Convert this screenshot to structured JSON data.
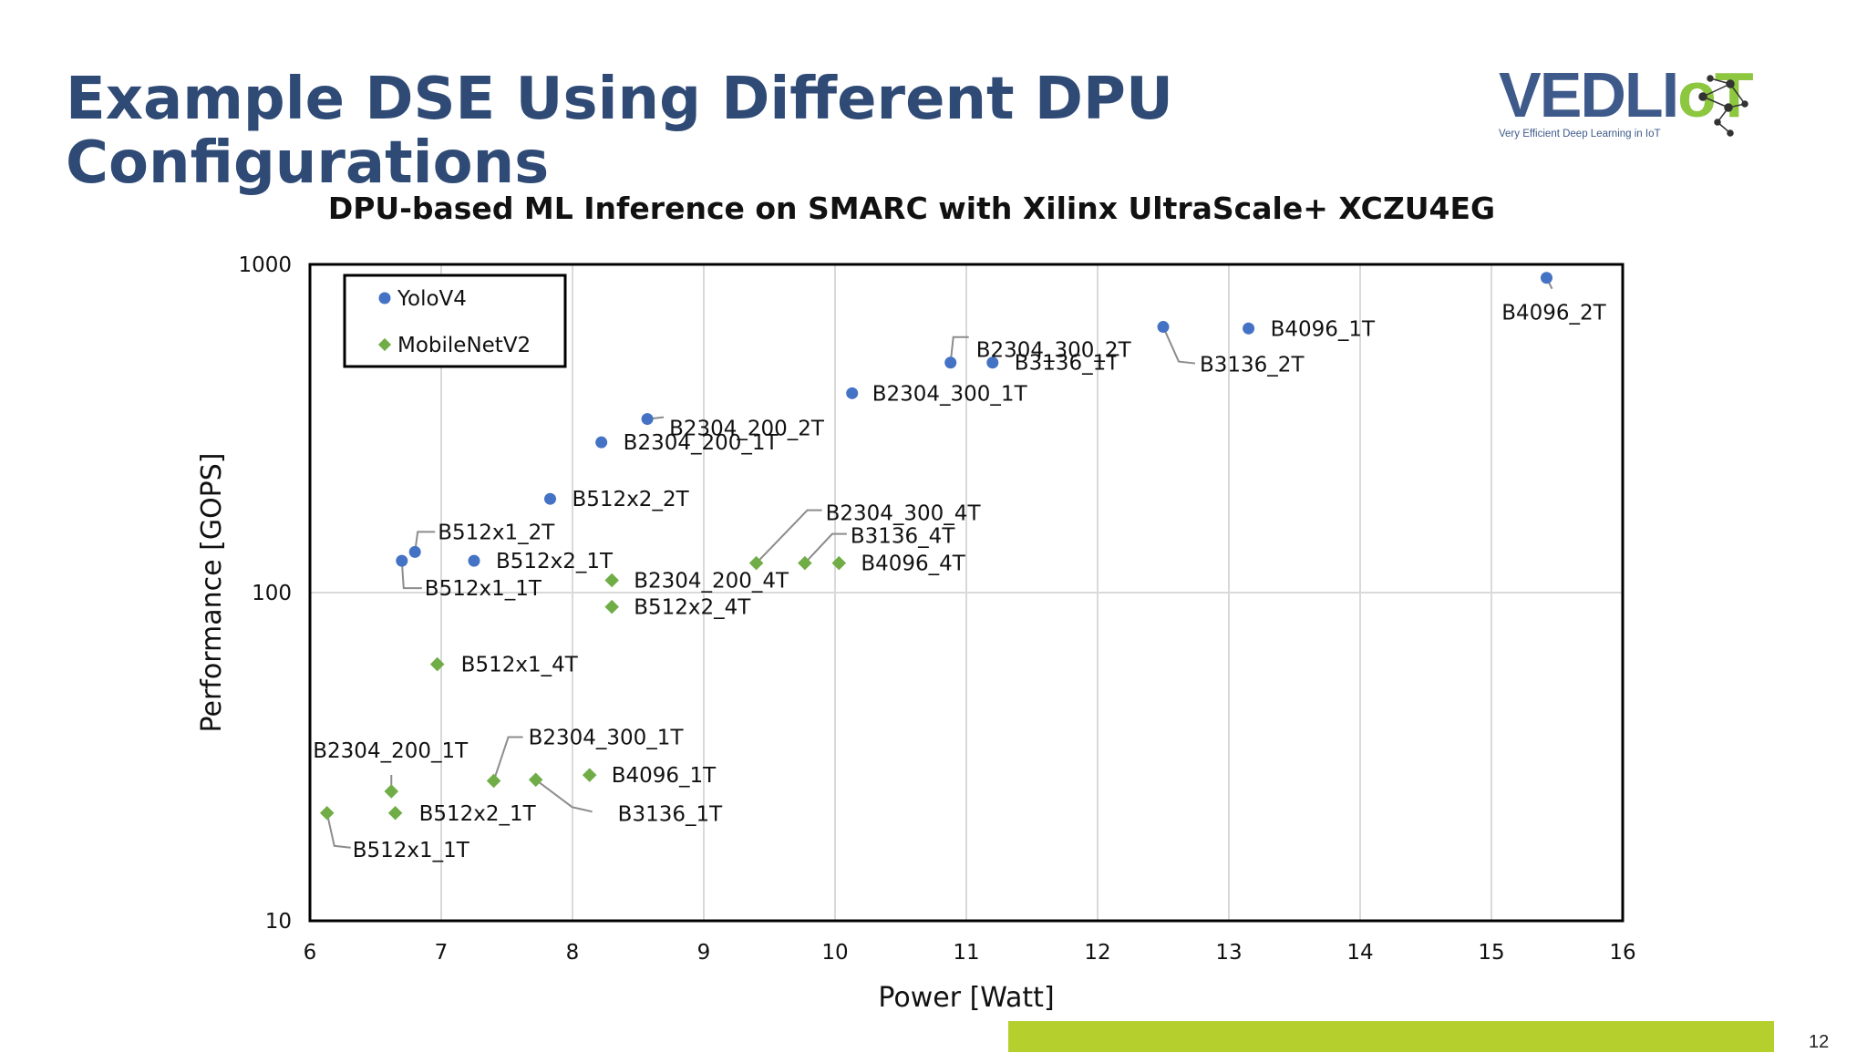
{
  "slide": {
    "title": "Example DSE Using Different DPU Configurations",
    "page_number": "12",
    "logo": {
      "brand": "VEDLIoT",
      "brand_main": "VEDLI",
      "brand_o": "o",
      "brand_t": "T",
      "tagline": "Very Efficient Deep Learning in IoT"
    }
  },
  "colors": {
    "title": "#2e4a75",
    "yolo": "#4472c4",
    "mobilenet": "#70ad47",
    "accent_bar": "#b5cf2c"
  },
  "chart_data": {
    "type": "scatter",
    "title": "DPU-based ML Inference on SMARC with Xilinx UltraScale+ XCZU4EG",
    "xlabel": "Power [Watt]",
    "ylabel": "Performance [GOPS]",
    "xlim": [
      6,
      16
    ],
    "ylim": [
      10,
      1000
    ],
    "yscale": "log",
    "x_ticks": [
      "6",
      "7",
      "8",
      "9",
      "10",
      "11",
      "12",
      "13",
      "14",
      "15",
      "16"
    ],
    "y_ticks": [
      "10",
      "100",
      "1000"
    ],
    "grid": true,
    "legend_position": "top-left",
    "series": [
      {
        "name": "YoloV4",
        "marker": "circle",
        "points": [
          {
            "label": "B512x1_1T",
            "x": 6.7,
            "y": 125
          },
          {
            "label": "B512x1_2T",
            "x": 6.8,
            "y": 133
          },
          {
            "label": "B512x2_1T",
            "x": 7.25,
            "y": 125
          },
          {
            "label": "B512x2_2T",
            "x": 7.83,
            "y": 193
          },
          {
            "label": "B2304_200_1T",
            "x": 8.22,
            "y": 287
          },
          {
            "label": "B2304_200_2T",
            "x": 8.57,
            "y": 338
          },
          {
            "label": "B2304_300_1T",
            "x": 10.13,
            "y": 405
          },
          {
            "label": "B2304_300_2T",
            "x": 10.88,
            "y": 502
          },
          {
            "label": "B3136_1T",
            "x": 11.2,
            "y": 502
          },
          {
            "label": "B3136_2T",
            "x": 12.5,
            "y": 645
          },
          {
            "label": "B4096_1T",
            "x": 13.15,
            "y": 638
          },
          {
            "label": "B4096_2T",
            "x": 15.42,
            "y": 910
          }
        ]
      },
      {
        "name": "MobileNetV2",
        "marker": "diamond",
        "points": [
          {
            "label": "B512x1_1T",
            "x": 6.13,
            "y": 21.3
          },
          {
            "label": "B2304_200_1T",
            "x": 6.62,
            "y": 24.8
          },
          {
            "label": "B512x2_1T",
            "x": 6.65,
            "y": 21.3
          },
          {
            "label": "B512x1_4T",
            "x": 6.97,
            "y": 60.5
          },
          {
            "label": "B2304_300_1T",
            "x": 7.4,
            "y": 26.7
          },
          {
            "label": "B3136_1T",
            "x": 7.72,
            "y": 26.9
          },
          {
            "label": "B4096_1T",
            "x": 8.13,
            "y": 27.8
          },
          {
            "label": "B2304_200_4T",
            "x": 8.3,
            "y": 109
          },
          {
            "label": "B512x2_4T",
            "x": 8.3,
            "y": 90.5
          },
          {
            "label": "B2304_300_4T",
            "x": 9.4,
            "y": 123
          },
          {
            "label": "B3136_4T",
            "x": 9.77,
            "y": 123
          },
          {
            "label": "B4096_4T",
            "x": 10.03,
            "y": 123
          }
        ]
      }
    ]
  }
}
